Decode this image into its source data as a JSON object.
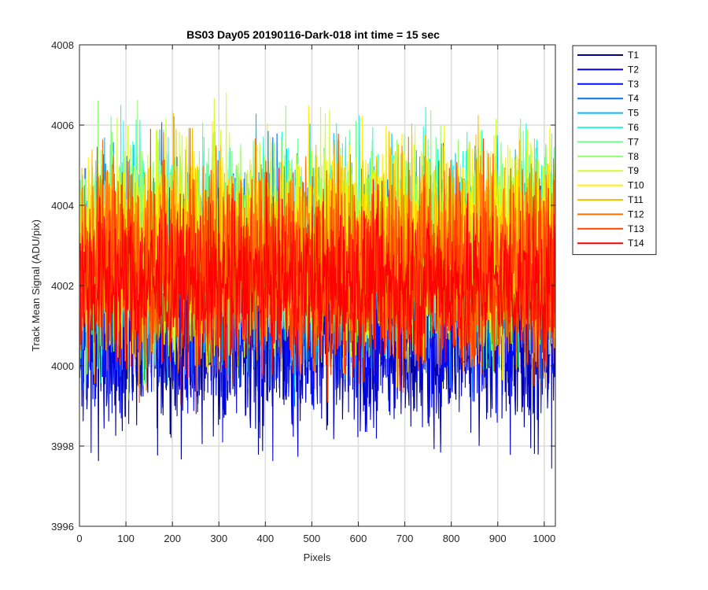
{
  "chart_data": {
    "type": "line",
    "title": "BS03 Day05 20190116-Dark-018 int time = 15 sec",
    "xlabel": "Pixels",
    "ylabel": "Track Mean Signal (ADU/pix)",
    "xlim": [
      0,
      1024
    ],
    "ylim": [
      3996,
      4008
    ],
    "xticks": [
      0,
      100,
      200,
      300,
      400,
      500,
      600,
      700,
      800,
      900,
      1000
    ],
    "yticks": [
      3996,
      3998,
      4000,
      4002,
      4004,
      4006,
      4008
    ],
    "grid": true,
    "legend_position": "outside-top-right",
    "series": [
      {
        "name": "T1",
        "color": "#00008f",
        "mean": 4001.0,
        "spread": 1.3
      },
      {
        "name": "T2",
        "color": "#0000cf",
        "mean": 4001.0,
        "spread": 1.3
      },
      {
        "name": "T3",
        "color": "#0010ff",
        "mean": 4001.3,
        "spread": 1.3
      },
      {
        "name": "T4",
        "color": "#0070ff",
        "mean": 4002.4,
        "spread": 1.3
      },
      {
        "name": "T5",
        "color": "#00bfff",
        "mean": 4002.8,
        "spread": 1.3
      },
      {
        "name": "T6",
        "color": "#20ffdf",
        "mean": 4003.0,
        "spread": 1.3
      },
      {
        "name": "T7",
        "color": "#70ff8f",
        "mean": 4003.0,
        "spread": 1.3
      },
      {
        "name": "T8",
        "color": "#8fff70",
        "mean": 4003.0,
        "spread": 1.3
      },
      {
        "name": "T9",
        "color": "#cfff30",
        "mean": 4003.0,
        "spread": 1.3
      },
      {
        "name": "T10",
        "color": "#ffef00",
        "mean": 4003.0,
        "spread": 1.3
      },
      {
        "name": "T11",
        "color": "#ffbf00",
        "mean": 4002.8,
        "spread": 1.3
      },
      {
        "name": "T12",
        "color": "#ff7000",
        "mean": 4002.6,
        "spread": 1.3
      },
      {
        "name": "T13",
        "color": "#ff4000",
        "mean": 4002.3,
        "spread": 1.3
      },
      {
        "name": "T14",
        "color": "#ff0000",
        "mean": 4002.0,
        "spread": 1.0
      }
    ]
  }
}
